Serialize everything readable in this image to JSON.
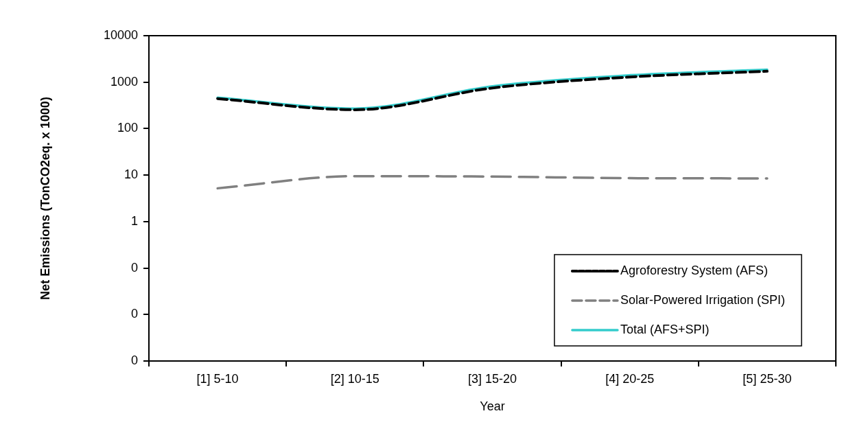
{
  "chart_data": {
    "type": "line",
    "xlabel": "Year",
    "ylabel": "Net Emissions (TonCO2eq. x 1000)",
    "categories": [
      "[1] 5-10",
      "[2] 10-15",
      "[3] 15-20",
      "[4] 20-25",
      "[5] 25-30"
    ],
    "series": [
      {
        "name": "Agroforestry System (AFS)",
        "color": "#000000",
        "line_style": "dashed",
        "values": [
          442,
          255,
          750,
          1290,
          1715
        ]
      },
      {
        "name": "Solar-Powered Irrigation (SPI)",
        "color": "#808080",
        "line_style": "dashed",
        "values": [
          5.2,
          9.5,
          9.3,
          8.6,
          8.5
        ]
      },
      {
        "name": "Total (AFS+SPI)",
        "color": "#33cccc",
        "line_style": "solid",
        "values": [
          465,
          270,
          815,
          1410,
          1850
        ]
      }
    ],
    "log": "y",
    "ylim": [
      0.001,
      10000
    ],
    "yticks": [
      {
        "value": 0.001,
        "label": "0"
      },
      {
        "value": 0.01,
        "label": "0"
      },
      {
        "value": 0.1,
        "label": "0"
      },
      1,
      10,
      100,
      1000,
      10000
    ],
    "grid": false,
    "legend": "bottom right",
    "marker": "none"
  }
}
